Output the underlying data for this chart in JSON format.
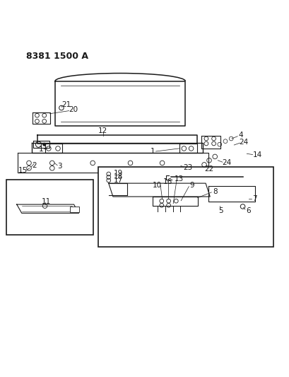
{
  "title": "8381 1500 A",
  "bg_color": "#ffffff",
  "line_color": "#1a1a1a",
  "title_fontsize": 9,
  "label_fontsize": 7.5,
  "fig_width": 4.1,
  "fig_height": 5.33,
  "dpi": 100
}
